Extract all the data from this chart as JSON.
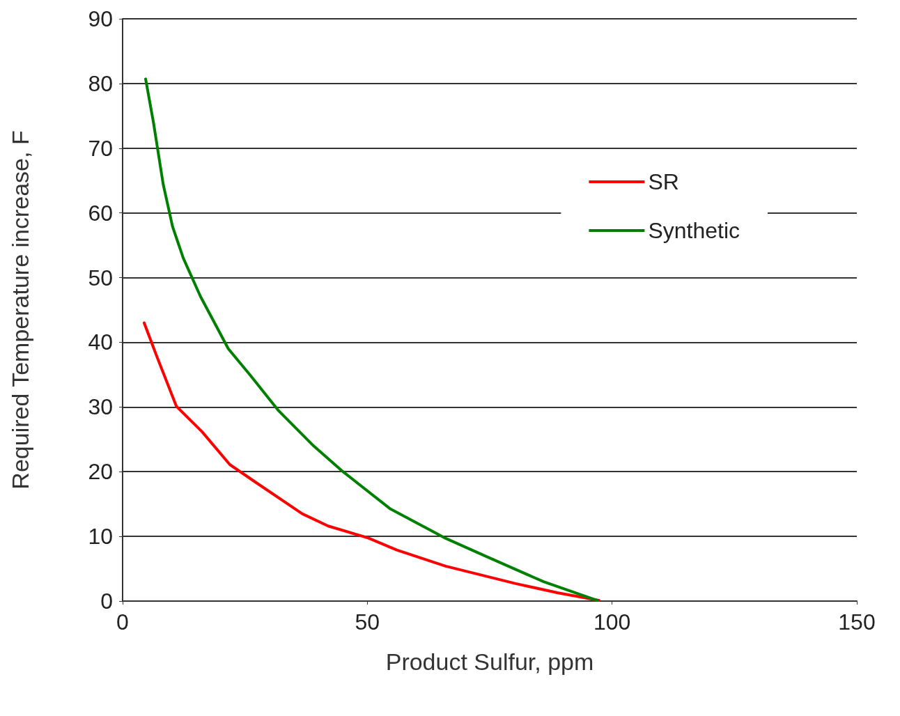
{
  "chart_data": {
    "type": "line",
    "xlabel": "Product Sulfur, ppm",
    "ylabel": "Required Temperature increase, F",
    "xlim": [
      0,
      150
    ],
    "xticks": [
      0,
      50,
      100,
      150
    ],
    "ylim": [
      0,
      90
    ],
    "yticks": [
      0,
      10,
      20,
      30,
      40,
      50,
      60,
      70,
      80,
      90
    ],
    "grid": "y",
    "legend": "top right",
    "marker": "none",
    "line_style": "solid",
    "series": [
      {
        "name": "SR",
        "color": "#ff0000",
        "x": [
          4.4,
          7,
          11,
          16.2,
          21.9,
          27.3,
          36.7,
          42,
          50,
          56,
          66,
          80.3,
          88.8,
          97.3
        ],
        "values": [
          43,
          37.8,
          30.1,
          26.2,
          21.1,
          18.3,
          13.5,
          11.6,
          9.8,
          7.9,
          5.4,
          2.7,
          1.3,
          0.1
        ]
      },
      {
        "name": "Synthetic",
        "color": "#008000",
        "x": [
          4.7,
          6.3,
          8.3,
          10.2,
          12.4,
          15.9,
          21.6,
          26.2,
          31.9,
          39,
          44.7,
          54.6,
          66,
          74.6,
          86,
          97
        ],
        "values": [
          80.7,
          74,
          64.4,
          57.9,
          53,
          47.1,
          39,
          34.8,
          29.4,
          24,
          20.2,
          14.3,
          9.7,
          6.8,
          3,
          0.1
        ]
      }
    ]
  }
}
